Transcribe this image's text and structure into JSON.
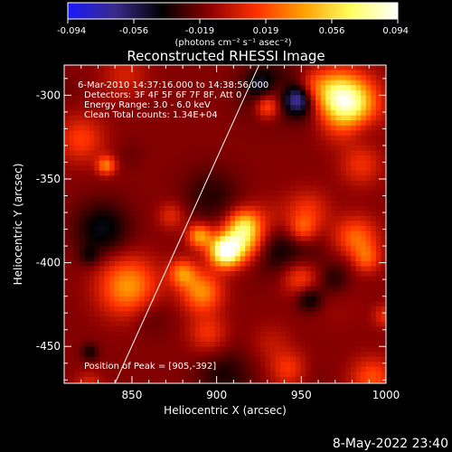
{
  "colorbar": {
    "ticks": [
      "-0.094",
      "-0.056",
      "-0.019",
      "0.019",
      "0.056",
      "0.094"
    ],
    "units": "(photons cm⁻² s⁻¹ asec⁻²)",
    "stops": [
      "#1a1aff",
      "#3a2a8a",
      "#000000",
      "#8b0000",
      "#ff3000",
      "#ffa000",
      "#ffff60",
      "#ffffff"
    ]
  },
  "chart_data": {
    "type": "heatmap",
    "title": "Reconstructed RHESSI Image",
    "xlabel": "Heliocentric X (arcsec)",
    "ylabel": "Heliocentric Y (arcsec)",
    "xlim": [
      810,
      1000
    ],
    "ylim": [
      -472,
      -282
    ],
    "xticks": [
      850,
      900,
      950,
      1000
    ],
    "yticks": [
      -300,
      -350,
      -400,
      -450
    ],
    "peak": [
      905,
      -392
    ],
    "limb_line": [
      [
        840,
        -472
      ],
      [
        925,
        -282
      ]
    ],
    "annotations": [
      " 6-Mar-2010 14:37:16.000 to 14:38:56.000",
      "Detectors: 3F 4F 5F 6F 7F 8F, Att 0",
      "Energy Range: 3.0 - 6.0 keV",
      "Clean     Total counts: 1.34E+04"
    ],
    "peak_label": "Position of Peak = [905,-392]"
  },
  "footer": {
    "timestamp": "8-May-2022 23:40"
  }
}
